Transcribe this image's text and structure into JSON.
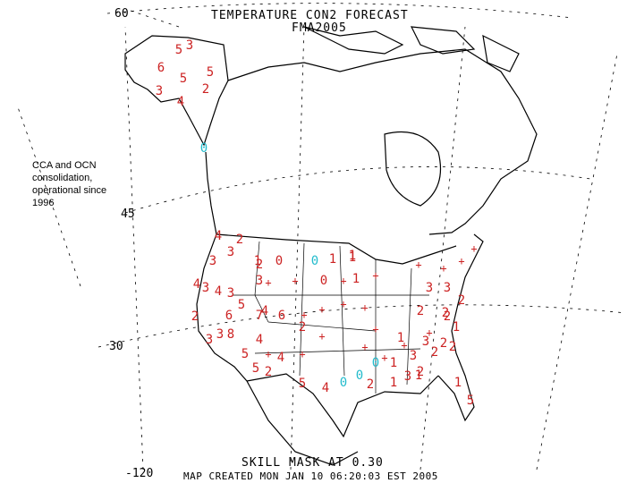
{
  "title": "TEMPERATURE CON2 FORECAST",
  "subtitle": "FMA2005",
  "note": "CCA and OCN consolidation, operational since 1996",
  "skill_mask": "SKILL MASK AT 0.30",
  "created": "MAP CREATED MON JAN 10 06:20:03 EST 2005",
  "lat_labels": {
    "lat60": "60",
    "lat45": "45",
    "lat30": "30"
  },
  "lon_labels": {
    "lon120": "-120"
  },
  "colors": {
    "positive": "#cc2222",
    "negative": "#22bbcc",
    "land": "#000000"
  },
  "values": [
    {
      "t": "5",
      "c": "pos"
    },
    {
      "t": "3",
      "c": "pos"
    },
    {
      "t": "6",
      "c": "pos"
    },
    {
      "t": "5",
      "c": "pos"
    },
    {
      "t": "5",
      "c": "pos"
    },
    {
      "t": "3",
      "c": "pos"
    },
    {
      "t": "2",
      "c": "pos"
    },
    {
      "t": "4",
      "c": "pos"
    },
    {
      "t": "0",
      "c": "neg"
    },
    {
      "t": "4",
      "c": "pos"
    },
    {
      "t": "2",
      "c": "pos"
    },
    {
      "t": "3",
      "c": "pos"
    },
    {
      "t": "3",
      "c": "pos"
    },
    {
      "t": "1",
      "c": "pos"
    },
    {
      "t": "0",
      "c": "pos"
    },
    {
      "t": "0",
      "c": "neg"
    },
    {
      "t": "1",
      "c": "pos"
    },
    {
      "t": "1",
      "c": "pos"
    },
    {
      "t": "3",
      "c": "pos"
    },
    {
      "t": "0",
      "c": "pos"
    },
    {
      "t": "1",
      "c": "pos"
    },
    {
      "t": "3",
      "c": "pos"
    },
    {
      "t": "4",
      "c": "pos"
    },
    {
      "t": "4",
      "c": "pos"
    },
    {
      "t": "3",
      "c": "pos"
    },
    {
      "t": "5",
      "c": "pos"
    },
    {
      "t": "6",
      "c": "pos"
    },
    {
      "t": "7",
      "c": "pos"
    },
    {
      "t": "6",
      "c": "pos"
    },
    {
      "t": "2",
      "c": "pos"
    },
    {
      "t": "3",
      "c": "pos"
    },
    {
      "t": "3",
      "c": "pos"
    },
    {
      "t": "8",
      "c": "pos"
    },
    {
      "t": "4",
      "c": "pos"
    },
    {
      "t": "5",
      "c": "pos"
    },
    {
      "t": "5",
      "c": "pos"
    },
    {
      "t": "4",
      "c": "pos"
    },
    {
      "t": "5",
      "c": "pos"
    },
    {
      "t": "4",
      "c": "pos"
    },
    {
      "t": "0",
      "c": "neg"
    },
    {
      "t": "0",
      "c": "neg"
    },
    {
      "t": "2",
      "c": "pos"
    },
    {
      "t": "1",
      "c": "pos"
    },
    {
      "t": "1",
      "c": "pos"
    },
    {
      "t": "3",
      "c": "pos"
    },
    {
      "t": "2",
      "c": "pos"
    },
    {
      "t": "3",
      "c": "pos"
    },
    {
      "t": "2",
      "c": "pos"
    },
    {
      "t": "2",
      "c": "pos"
    },
    {
      "t": "2",
      "c": "pos"
    },
    {
      "t": "3",
      "c": "pos"
    },
    {
      "t": "3",
      "c": "pos"
    },
    {
      "t": "2",
      "c": "pos"
    },
    {
      "t": "1",
      "c": "pos"
    },
    {
      "t": "2",
      "c": "pos"
    },
    {
      "t": "3",
      "c": "pos"
    },
    {
      "t": "2",
      "c": "pos"
    },
    {
      "t": "1",
      "c": "pos"
    },
    {
      "t": "1",
      "c": "pos"
    },
    {
      "t": "2",
      "c": "pos"
    },
    {
      "t": "5",
      "c": "pos"
    },
    {
      "t": "0",
      "c": "neg"
    },
    {
      "t": "1",
      "c": "pos"
    },
    {
      "t": "2",
      "c": "pos"
    },
    {
      "t": "2",
      "c": "pos"
    },
    {
      "t": "4",
      "c": "pos"
    },
    {
      "t": "2",
      "c": "pos"
    },
    {
      "t": "1",
      "c": "pos"
    }
  ]
}
